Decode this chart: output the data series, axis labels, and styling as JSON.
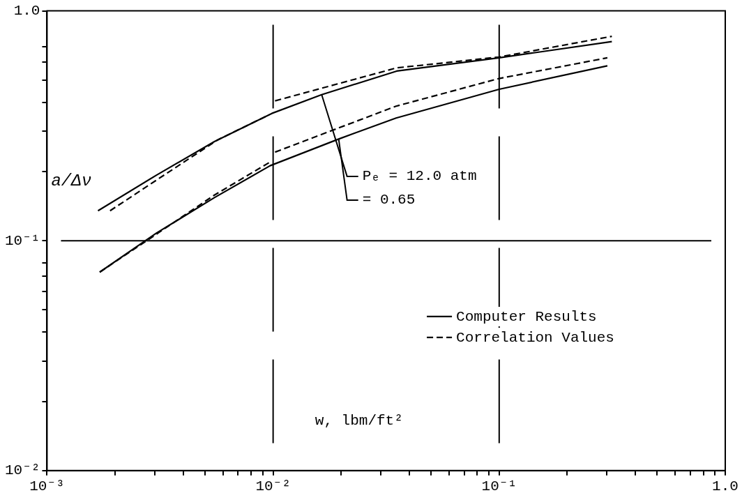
{
  "chart_data": {
    "type": "line",
    "xlabel": "w, lbm/ft²",
    "ylabel": "a/Δν",
    "log": "xy",
    "xlim": [
      0.001,
      1.0
    ],
    "ylim": [
      0.01,
      1.0
    ],
    "xticks": [
      {
        "value": 0.001,
        "label": "10⁻³"
      },
      {
        "value": 0.002,
        "label": null
      },
      {
        "value": 0.003,
        "label": null
      },
      {
        "value": 0.004,
        "label": null
      },
      {
        "value": 0.005,
        "label": null
      },
      {
        "value": 0.006,
        "label": null
      },
      {
        "value": 0.007,
        "label": null
      },
      {
        "value": 0.008,
        "label": null
      },
      {
        "value": 0.009,
        "label": null
      },
      {
        "value": 0.01,
        "label": "10⁻²"
      },
      {
        "value": 0.02,
        "label": null
      },
      {
        "value": 0.03,
        "label": null
      },
      {
        "value": 0.04,
        "label": null
      },
      {
        "value": 0.05,
        "label": null
      },
      {
        "value": 0.06,
        "label": null
      },
      {
        "value": 0.07,
        "label": null
      },
      {
        "value": 0.08,
        "label": null
      },
      {
        "value": 0.09,
        "label": null
      },
      {
        "value": 0.1,
        "label": "10⁻¹"
      },
      {
        "value": 0.2,
        "label": null
      },
      {
        "value": 0.3,
        "label": null
      },
      {
        "value": 0.4,
        "label": null
      },
      {
        "value": 0.5,
        "label": null
      },
      {
        "value": 0.6,
        "label": null
      },
      {
        "value": 0.7,
        "label": null
      },
      {
        "value": 0.8,
        "label": null
      },
      {
        "value": 0.9,
        "label": null
      },
      {
        "value": 1.0,
        "label": "1.0"
      }
    ],
    "yticks": [
      {
        "value": 0.01,
        "label": "10⁻²"
      },
      {
        "value": 0.02,
        "label": null
      },
      {
        "value": 0.03,
        "label": null
      },
      {
        "value": 0.04,
        "label": null
      },
      {
        "value": 0.05,
        "label": null
      },
      {
        "value": 0.06,
        "label": null
      },
      {
        "value": 0.07,
        "label": null
      },
      {
        "value": 0.08,
        "label": null
      },
      {
        "value": 0.1,
        "label": "10⁻¹"
      },
      {
        "value": 0.2,
        "label": null
      },
      {
        "value": 0.3,
        "label": null
      },
      {
        "value": 0.4,
        "label": null
      },
      {
        "value": 0.5,
        "label": null
      },
      {
        "value": 0.6,
        "label": null
      },
      {
        "value": 0.7,
        "label": null
      },
      {
        "value": 1.0,
        "label": "1.0"
      }
    ],
    "grid": false,
    "legend": "bottom right",
    "series": [
      {
        "name": "Computer Results",
        "color": "#000000",
        "line_style": "solid",
        "x": [
          0.00168,
          0.00305,
          0.0055,
          0.00987,
          0.0164,
          0.0352,
          0.1,
          0.315
        ],
        "values": [
          0.135,
          0.193,
          0.27,
          0.358,
          0.432,
          0.547,
          0.625,
          0.735
        ]
      },
      {
        "name": "Correlation Values",
        "color": "#000000",
        "line_style": "dashed",
        "x": [
          0.0019,
          0.0034,
          0.0057,
          0.0096,
          0.0098,
          0.0102,
          0.0352,
          0.1,
          0.315
        ],
        "values": [
          0.135,
          0.197,
          0.275,
          0.353,
          null,
          0.406,
          0.565,
          0.63,
          0.775
        ]
      },
      {
        "color": "#000000",
        "line_style": "solid",
        "x": [
          0.00171,
          0.00305,
          0.0055,
          0.0097,
          0.0195,
          0.035,
          0.1,
          0.301
        ],
        "values": [
          0.073,
          0.108,
          0.154,
          0.212,
          0.277,
          0.342,
          0.456,
          0.577
        ]
      },
      {
        "color": "#000000",
        "line_style": "dashed",
        "x": [
          0.00171,
          0.0031,
          0.0055,
          0.0097,
          0.0099,
          0.0102,
          0.035,
          0.1,
          0.301
        ],
        "values": [
          0.073,
          0.108,
          0.158,
          0.22,
          null,
          0.243,
          0.385,
          0.508,
          0.625
        ]
      }
    ],
    "ref_lines": [
      {
        "axis": "x",
        "value": 0.01,
        "line_style": "dashed",
        "color": "#000000"
      },
      {
        "axis": "x",
        "value": 0.1,
        "line_style": "dashed",
        "color": "#000000"
      },
      {
        "axis": "y",
        "value": 0.1,
        "line_style": "solid",
        "color": "#000000"
      }
    ],
    "annotations": [
      {
        "text": "Pₑ = 12.0 atm",
        "x": 0.0164,
        "y": 0.432
      },
      {
        "text": "= 0.65",
        "x": 0.0195,
        "y": 0.277
      }
    ]
  }
}
